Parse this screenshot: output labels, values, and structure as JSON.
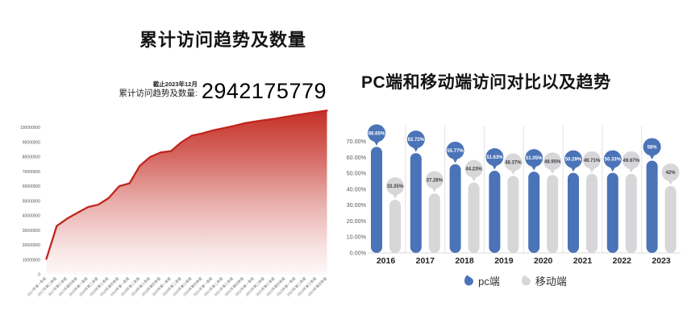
{
  "chart_data": [
    {
      "type": "area",
      "title": "累计访问趋势及数量",
      "annotation": {
        "date_note": "截止2023年12月",
        "label": "累计访问趋势及数量:",
        "value": "2942175779"
      },
      "x": [
        "2017年第一季度",
        "2017年第二季度",
        "2017年第三季度",
        "2017年第四季度",
        "2018年第一季度",
        "2018年第二季度",
        "2018年第三季度",
        "2018年第四季度",
        "2019年第一季度",
        "2019年第二季度",
        "2019年第三季度",
        "2019年第四季度",
        "2020年第一季度",
        "2020年第二季度",
        "2020年第三季度",
        "2020年第四季度",
        "2021年第一季度",
        "2021年第二季度",
        "2021年第三季度",
        "2021年第四季度",
        "2022年第一季度",
        "2022年第二季度",
        "2022年第三季度",
        "2022年第四季度",
        "2023年第一季度",
        "2023年第二季度",
        "2023年第三季度",
        "2023年第四季度"
      ],
      "values": [
        10500000,
        33000000,
        38000000,
        42000000,
        45800000,
        47500000,
        52000000,
        60000000,
        62000000,
        74000000,
        80000000,
        83000000,
        84000000,
        90000000,
        94500000,
        96000000,
        98000000,
        99500000,
        101000000,
        102800000,
        104000000,
        105000000,
        106000000,
        107200000,
        108400000,
        109500000,
        110500000,
        111500000
      ],
      "ytick_labels": [
        "0",
        "10000000",
        "20000000",
        "30000000",
        "40000000",
        "50000000",
        "60000000",
        "70000000",
        "80000000",
        "90000000",
        "100000000"
      ],
      "ytick_step": 10000000,
      "ylim": [
        0,
        100000000
      ],
      "line_color": "#c2251c",
      "grid": false
    },
    {
      "type": "bar",
      "title": "PC端和移动端访问对比以及趋势",
      "categories": [
        "2016",
        "2017",
        "2018",
        "2019",
        "2020",
        "2021",
        "2022",
        "2023"
      ],
      "series": [
        {
          "name": "pc端",
          "color": "#4a73b8",
          "values": [
            66.65,
            62.72,
            55.77,
            51.63,
            51.05,
            50.29,
            50.33,
            58
          ],
          "labels": [
            "66.65%",
            "62.72%",
            "55.77%",
            "51.63%",
            "51.05%",
            "50.29%",
            "50.33%",
            "58%"
          ],
          "label_text_color": "#ffffff"
        },
        {
          "name": "移动端",
          "color": "#d7d7da",
          "values": [
            33.35,
            37.28,
            44.23,
            48.37,
            48.95,
            49.71,
            49.67,
            42
          ],
          "labels": [
            "33.35%",
            "37.28%",
            "44.23%",
            "48.37%",
            "48.95%",
            "49.71%",
            "49.67%",
            "42%"
          ],
          "label_text_color": "#404040"
        }
      ],
      "ytick_labels": [
        "0.00%",
        "10.00%",
        "20.00%",
        "30.00%",
        "40.00%",
        "50.00%",
        "60.00%",
        "70.00%"
      ],
      "ylim": [
        0,
        70
      ],
      "legend_position": "bottom",
      "axis_text_color": "#595959",
      "separator_color": "#e1e1e4",
      "baseline_color": "#d9d9d9"
    }
  ]
}
